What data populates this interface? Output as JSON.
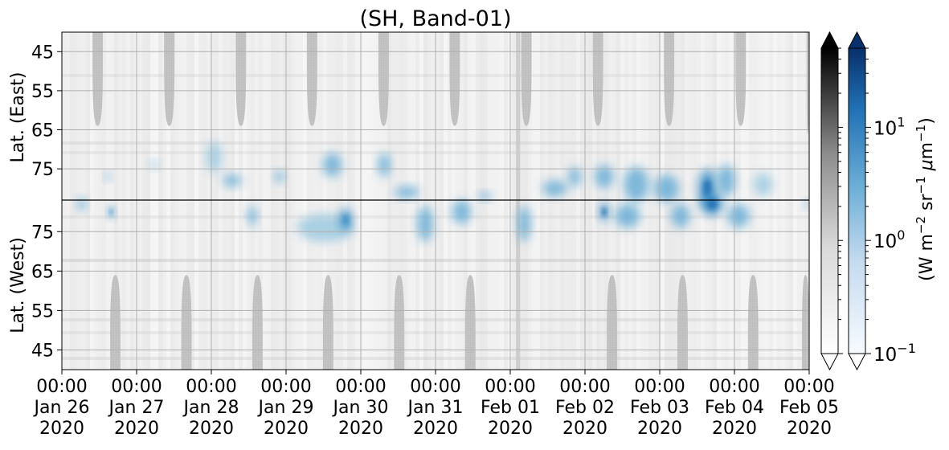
{
  "chart_data": {
    "type": "heatmap",
    "title": "(SH, Band-01)",
    "xlabel": "",
    "ylabel_top": "Lat. (East)",
    "ylabel_bottom": "Lat. (West)",
    "x_range": [
      "2020-01-26 00:00",
      "2020-02-05 00:00"
    ],
    "x_ticks": [
      {
        "time": "00:00",
        "date": "Jan 26",
        "year": "2020"
      },
      {
        "time": "00:00",
        "date": "Jan 27",
        "year": "2020"
      },
      {
        "time": "00:00",
        "date": "Jan 28",
        "year": "2020"
      },
      {
        "time": "00:00",
        "date": "Jan 29",
        "year": "2020"
      },
      {
        "time": "00:00",
        "date": "Jan 30",
        "year": "2020"
      },
      {
        "time": "00:00",
        "date": "Jan 31",
        "year": "2020"
      },
      {
        "time": "00:00",
        "date": "Feb 01",
        "year": "2020"
      },
      {
        "time": "00:00",
        "date": "Feb 02",
        "year": "2020"
      },
      {
        "time": "00:00",
        "date": "Feb 03",
        "year": "2020"
      },
      {
        "time": "00:00",
        "date": "Feb 04",
        "year": "2020"
      },
      {
        "time": "00:00",
        "date": "Feb 05",
        "year": "2020"
      }
    ],
    "y_ticks_top": [
      "45",
      "55",
      "65",
      "75"
    ],
    "y_ticks_bottom": [
      "75",
      "65",
      "55",
      "45"
    ],
    "y_range_top": [
      40,
      83
    ],
    "y_range_bottom": [
      83,
      40
    ],
    "divider_lat": 83,
    "grid": true,
    "colorbars": [
      {
        "name": "gray",
        "cmap": "Greys",
        "extend": "both",
        "scale": "log",
        "range": [
          0.1,
          50
        ]
      },
      {
        "name": "blue",
        "cmap": "Blues",
        "extend": "both",
        "scale": "log",
        "range": [
          0.1,
          50
        ],
        "tick_labels": [
          {
            "base": "10",
            "exp": "1",
            "value": 10
          },
          {
            "base": "10",
            "exp": "0",
            "value": 1
          },
          {
            "base": "10",
            "exp": "−1",
            "value": 0.1
          }
        ]
      }
    ],
    "colorbar_label": {
      "parts": [
        "(W m",
        "−2",
        " sr",
        "−1",
        " ",
        "μ",
        "m",
        "−1",
        ")"
      ]
    },
    "night_regions_top": [
      {
        "start": "Jan 26 09:50",
        "end": "Jan 26 13:10",
        "lat_min": 64
      },
      {
        "start": "Jan 27 08:50",
        "end": "Jan 27 12:10",
        "lat_min": 64
      },
      {
        "start": "Jan 28 07:50",
        "end": "Jan 28 11:10",
        "lat_min": 64
      },
      {
        "start": "Jan 29 06:40",
        "end": "Jan 29 10:00",
        "lat_min": 64
      },
      {
        "start": "Jan 30 05:40",
        "end": "Jan 30 09:00",
        "lat_min": 64
      },
      {
        "start": "Jan 31 04:30",
        "end": "Jan 31 07:50",
        "lat_min": 64
      },
      {
        "start": "Feb 01 03:30",
        "end": "Feb 01 06:50",
        "lat_min": 64
      },
      {
        "start": "Feb 02 02:30",
        "end": "Feb 02 05:50",
        "lat_min": 64
      },
      {
        "start": "Feb 03 01:20",
        "end": "Feb 03 04:40",
        "lat_min": 64
      },
      {
        "start": "Feb 04 00:20",
        "end": "Feb 04 03:40",
        "lat_min": 64
      },
      {
        "start": "Feb 04 23:10",
        "end": "Feb 05 00:00",
        "lat_min": 66
      }
    ],
    "night_regions_bottom": [
      {
        "start": "Jan 26 15:30",
        "end": "Jan 26 18:50",
        "lat_min": 64
      },
      {
        "start": "Jan 27 14:20",
        "end": "Jan 27 17:40",
        "lat_min": 64
      },
      {
        "start": "Jan 28 13:10",
        "end": "Jan 28 16:30",
        "lat_min": 64
      },
      {
        "start": "Jan 29 11:50",
        "end": "Jan 29 15:10",
        "lat_min": 64
      },
      {
        "start": "Jan 30 10:40",
        "end": "Jan 30 14:00",
        "lat_min": 64
      },
      {
        "start": "Jan 31 09:30",
        "end": "Jan 31 12:50",
        "lat_min": 64
      },
      {
        "start": "Feb 02 07:00",
        "end": "Feb 02 10:20",
        "lat_min": 64
      },
      {
        "start": "Feb 03 05:40",
        "end": "Feb 03 09:00",
        "lat_min": 64
      },
      {
        "start": "Feb 04 04:20",
        "end": "Feb 04 07:40",
        "lat_min": 64
      },
      {
        "start": "Feb 04 21:40",
        "end": "Feb 05 00:00",
        "lat_min": 64
      }
    ],
    "data_gap": {
      "start": "Feb 01 01:50",
      "end": "Feb 01 03:10"
    },
    "emission_blobs": [
      {
        "time": "Jan 26 06:20",
        "lat": 82,
        "side": "west",
        "dt_hours": 3,
        "dlat": 3,
        "value": 2.5
      },
      {
        "time": "Jan 26 15:50",
        "lat": 80,
        "side": "west",
        "dt_hours": 2,
        "dlat": 3,
        "value": 4
      },
      {
        "time": "Jan 26 14:50",
        "lat": 77,
        "side": "east",
        "dt_hours": 2,
        "dlat": 2,
        "value": 2
      },
      {
        "time": "Jan 27 05:40",
        "lat": 74,
        "side": "east",
        "dt_hours": 3,
        "dlat": 2,
        "value": 1
      },
      {
        "time": "Jan 28 00:50",
        "lat": 72,
        "side": "east",
        "dt_hours": 5,
        "dlat": 8,
        "value": 1
      },
      {
        "time": "Jan 28 06:40",
        "lat": 78,
        "side": "east",
        "dt_hours": 6,
        "dlat": 3,
        "value": 1.5
      },
      {
        "time": "Jan 28 13:10",
        "lat": 79,
        "side": "west",
        "dt_hours": 3,
        "dlat": 5,
        "value": 2.5
      },
      {
        "time": "Jan 28 21:50",
        "lat": 77,
        "side": "east",
        "dt_hours": 3,
        "dlat": 3,
        "value": 1.5
      },
      {
        "time": "Jan 29 12:30",
        "lat": 76,
        "side": "west",
        "dt_hours": 18,
        "dlat": 7,
        "value": 1
      },
      {
        "time": "Jan 29 19:10",
        "lat": 78,
        "side": "west",
        "dt_hours": 4,
        "dlat": 6,
        "value": 4
      },
      {
        "time": "Jan 29 14:50",
        "lat": 74,
        "side": "east",
        "dt_hours": 6,
        "dlat": 6,
        "value": 1.5
      },
      {
        "time": "Jan 30 07:30",
        "lat": 74,
        "side": "east",
        "dt_hours": 4,
        "dlat": 6,
        "value": 2.5
      },
      {
        "time": "Jan 30 14:50",
        "lat": 81,
        "side": "east",
        "dt_hours": 8,
        "dlat": 3,
        "value": 2
      },
      {
        "time": "Jan 30 20:40",
        "lat": 77,
        "side": "west",
        "dt_hours": 5,
        "dlat": 9,
        "value": 3
      },
      {
        "time": "Jan 31 08:20",
        "lat": 80,
        "side": "west",
        "dt_hours": 6,
        "dlat": 6,
        "value": 2.5
      },
      {
        "time": "Jan 31 15:50",
        "lat": 82,
        "side": "east",
        "dt_hours": 4,
        "dlat": 2,
        "value": 3
      },
      {
        "time": "Feb 01 04:30",
        "lat": 77,
        "side": "west",
        "dt_hours": 4,
        "dlat": 9,
        "value": 1.5
      },
      {
        "time": "Feb 01 14:20",
        "lat": 80,
        "side": "east",
        "dt_hours": 8,
        "dlat": 4,
        "value": 2
      },
      {
        "time": "Feb 01 20:40",
        "lat": 77,
        "side": "east",
        "dt_hours": 4,
        "dlat": 5,
        "value": 2.5
      },
      {
        "time": "Feb 02 06:10",
        "lat": 80,
        "side": "west",
        "dt_hours": 3,
        "dlat": 5,
        "value": 5
      },
      {
        "time": "Feb 02 06:10",
        "lat": 77,
        "side": "east",
        "dt_hours": 6,
        "dlat": 6,
        "value": 2.5
      },
      {
        "time": "Feb 02 13:40",
        "lat": 79,
        "side": "west",
        "dt_hours": 8,
        "dlat": 6,
        "value": 2
      },
      {
        "time": "Feb 02 16:30",
        "lat": 79,
        "side": "east",
        "dt_hours": 8,
        "dlat": 9,
        "value": 2
      },
      {
        "time": "Feb 03 02:10",
        "lat": 80,
        "side": "east",
        "dt_hours": 8,
        "dlat": 7,
        "value": 2.5
      },
      {
        "time": "Feb 03 06:40",
        "lat": 79,
        "side": "west",
        "dt_hours": 6,
        "dlat": 6,
        "value": 2
      },
      {
        "time": "Feb 03 15:20",
        "lat": 80,
        "side": "east",
        "dt_hours": 6,
        "dlat": 10,
        "value": 8
      },
      {
        "time": "Feb 03 16:50",
        "lat": 82,
        "side": "west",
        "dt_hours": 7,
        "dlat": 6,
        "value": 10
      },
      {
        "time": "Feb 03 21:20",
        "lat": 78,
        "side": "east",
        "dt_hours": 6,
        "dlat": 8,
        "value": 2
      },
      {
        "time": "Feb 04 01:20",
        "lat": 79,
        "side": "west",
        "dt_hours": 7,
        "dlat": 6,
        "value": 1.5
      },
      {
        "time": "Feb 04 09:10",
        "lat": 79,
        "side": "east",
        "dt_hours": 6,
        "dlat": 6,
        "value": 1
      },
      {
        "time": "Feb 04 23:20",
        "lat": 82,
        "side": "west",
        "dt_hours": 2,
        "dlat": 2,
        "value": 2
      }
    ]
  }
}
